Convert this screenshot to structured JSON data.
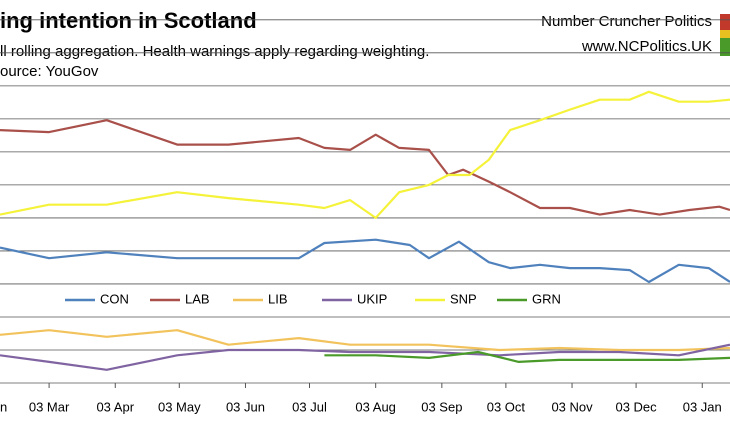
{
  "chart_data": {
    "type": "line",
    "title": "ing intention in Scotland",
    "subtitle": "ll rolling aggregation. Health warnings apply regarding weighting.",
    "source": "ource: YouGov",
    "brand": "Number Cruncher Politics",
    "website": "www.NCPolitics.UK",
    "xlim": [
      5,
      347
    ],
    "xticks": [
      {
        "value": 0,
        "label": "n"
      },
      {
        "value": 28,
        "label": "03 Mar"
      },
      {
        "value": 59,
        "label": "03 Apr"
      },
      {
        "value": 89,
        "label": "03 May"
      },
      {
        "value": 120,
        "label": "03 Jun"
      },
      {
        "value": 150,
        "label": "03 Jul"
      },
      {
        "value": 181,
        "label": "03 Aug"
      },
      {
        "value": 212,
        "label": "03 Sep"
      },
      {
        "value": 242,
        "label": "03 Oct"
      },
      {
        "value": 273,
        "label": "03 Nov"
      },
      {
        "value": 303,
        "label": "03 Dec"
      },
      {
        "value": 334,
        "label": "03 Jan"
      }
    ],
    "ylim": [
      0,
      58
    ],
    "ygrid": [
      0,
      5,
      10,
      15,
      20,
      25,
      30,
      35,
      40,
      45,
      50,
      55
    ],
    "grid": true,
    "legend": "middle",
    "series": [
      {
        "name": "CON",
        "color": "#4f81bd",
        "x": [
          5,
          28,
          55,
          88,
          112,
          145,
          157,
          181,
          197,
          206,
          220,
          234,
          244,
          258,
          272,
          286,
          300,
          309,
          323,
          337,
          347
        ],
        "values": [
          20.5,
          18.9,
          19.8,
          18.9,
          18.9,
          18.9,
          21.2,
          21.7,
          20.9,
          18.9,
          21.4,
          18.3,
          17.4,
          17.9,
          17.4,
          17.4,
          17.1,
          15.3,
          17.9,
          17.4,
          15.3
        ]
      },
      {
        "name": "LAB",
        "color": "#a9504a",
        "x": [
          5,
          28,
          55,
          88,
          112,
          145,
          157,
          169,
          181,
          192,
          206,
          215,
          222,
          234,
          244,
          258,
          272,
          286,
          300,
          314,
          328,
          342,
          347
        ],
        "values": [
          38.3,
          38.0,
          39.8,
          36.1,
          36.1,
          37.1,
          35.6,
          35.3,
          37.6,
          35.6,
          35.3,
          31.5,
          32.3,
          30.5,
          28.9,
          26.5,
          26.5,
          25.5,
          26.2,
          25.5,
          26.2,
          26.7,
          26.2
        ]
      },
      {
        "name": "LIB",
        "color": "#f2c35c",
        "x": [
          5,
          28,
          55,
          88,
          112,
          145,
          169,
          206,
          239,
          267,
          295,
          323,
          347
        ],
        "values": [
          7.3,
          8.0,
          7.0,
          8.0,
          5.8,
          6.8,
          5.8,
          5.8,
          5.0,
          5.3,
          5.0,
          5.0,
          5.3
        ]
      },
      {
        "name": "UKIP",
        "color": "#8064a2",
        "x": [
          5,
          28,
          55,
          88,
          112,
          145,
          169,
          206,
          239,
          267,
          295,
          323,
          347
        ],
        "values": [
          4.2,
          3.2,
          2.0,
          4.2,
          5.0,
          5.0,
          4.7,
          4.7,
          4.2,
          4.7,
          4.7,
          4.2,
          5.8
        ]
      },
      {
        "name": "SNP",
        "color": "#f5f23a",
        "x": [
          5,
          28,
          55,
          88,
          112,
          145,
          157,
          169,
          181,
          192,
          206,
          215,
          225,
          234,
          244,
          258,
          272,
          286,
          300,
          309,
          323,
          337,
          347
        ],
        "values": [
          25.5,
          27.0,
          27.0,
          28.9,
          28.0,
          27.0,
          26.5,
          27.7,
          25.0,
          28.9,
          30.0,
          31.5,
          31.5,
          33.8,
          38.3,
          39.8,
          41.4,
          42.9,
          42.9,
          44.1,
          42.6,
          42.6,
          42.9
        ]
      },
      {
        "name": "GRN",
        "color": "#4a9a2a",
        "x": [
          157,
          181,
          206,
          229,
          248,
          267,
          295,
          323,
          347
        ],
        "values": [
          4.2,
          4.2,
          3.8,
          4.7,
          3.2,
          3.5,
          3.5,
          3.5,
          3.8
        ]
      }
    ]
  }
}
